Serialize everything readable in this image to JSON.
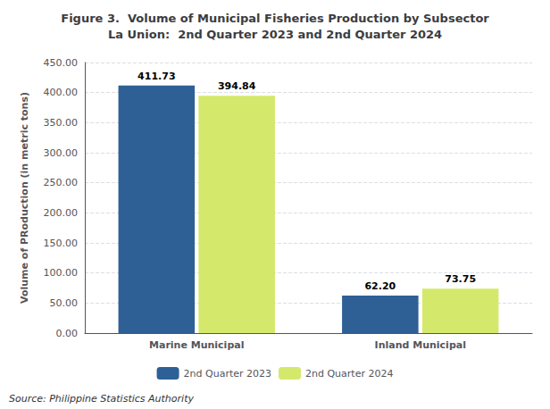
{
  "chart_data": {
    "type": "bar",
    "title": "Figure 3.  Volume of Municipal Fisheries Production by Subsector\nLa Union:  2nd Quarter 2023 and 2nd Quarter 2024",
    "ylabel": "Volume of PRoduction (in metric tons)",
    "categories": [
      "Marine Municipal",
      "Inland Municipal"
    ],
    "series": [
      {
        "name": "2nd Quarter 2023",
        "color": "#2E6096",
        "values": [
          411.73,
          62.2
        ],
        "value_labels": [
          "411.73",
          "62.20"
        ]
      },
      {
        "name": "2nd Quarter 2024",
        "color": "#D4E96B",
        "values": [
          394.84,
          73.75
        ],
        "value_labels": [
          "394.84",
          "73.75"
        ]
      }
    ],
    "ylim": [
      0,
      450
    ],
    "yticks": [
      {
        "value": 0,
        "label": "0.00"
      },
      {
        "value": 50,
        "label": "50.00"
      },
      {
        "value": 100,
        "label": "100.00"
      },
      {
        "value": 150,
        "label": "150.00"
      },
      {
        "value": 200,
        "label": "200.00"
      },
      {
        "value": 250,
        "label": "250.00"
      },
      {
        "value": 300,
        "label": "300.00"
      },
      {
        "value": 350,
        "label": "350.00"
      },
      {
        "value": 400,
        "label": "400.00"
      },
      {
        "value": 450,
        "label": "450.00"
      }
    ],
    "grid": true,
    "legend": "bottom",
    "data_labels": true,
    "annotations": [
      "Source: Philippine Statistics Authority"
    ]
  }
}
